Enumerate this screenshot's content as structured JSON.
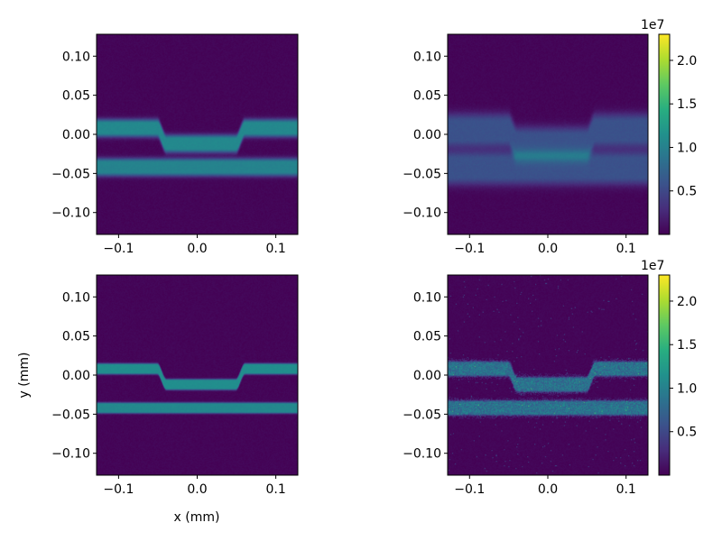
{
  "chart_data": [
    {
      "type": "heatmap",
      "panel": "top-left",
      "xlabel": "",
      "ylabel": "",
      "xlim": [
        -0.128,
        0.128
      ],
      "ylim": [
        -0.128,
        0.128
      ],
      "xticks": [
        -0.1,
        0.0,
        0.1
      ],
      "xtick_labels": [
        "−0.1",
        "0.0",
        "0.1"
      ],
      "yticks": [
        0.1,
        0.05,
        0.0,
        -0.05,
        -0.1
      ],
      "ytick_labels": [
        "0.10",
        "0.05",
        "0.00",
        "−0.05",
        "−0.10"
      ],
      "colormap": "viridis",
      "features": {
        "upper_guide": {
          "y_outer": 0.008,
          "y_center_dip": -0.012,
          "dip_x_range": [
            -0.045,
            0.055
          ],
          "half_width": 0.006,
          "intensity": 10500000.0
        },
        "lower_guide": {
          "y": -0.042,
          "half_width": 0.006,
          "intensity": 10000000.0
        },
        "blur": 0.004
      }
    },
    {
      "type": "heatmap",
      "panel": "top-right",
      "xlabel": "",
      "ylabel": "",
      "xlim": [
        -0.128,
        0.128
      ],
      "ylim": [
        -0.128,
        0.128
      ],
      "xticks": [
        -0.1,
        0.0,
        0.1
      ],
      "xtick_labels": [
        "−0.1",
        "0.0",
        "0.1"
      ],
      "yticks": [
        0.1,
        0.05,
        0.0,
        -0.05,
        -0.1
      ],
      "ytick_labels": [
        "0.10",
        "0.05",
        "0.00",
        "−0.05",
        "−0.10"
      ],
      "colormap": "viridis",
      "colorbar": {
        "range": [
          0.0,
          23000000.0
        ],
        "ticks": [
          0.5,
          1.0,
          1.5,
          2.0
        ],
        "tick_labels": [
          "0.5",
          "1.0",
          "1.5",
          "2.0"
        ],
        "offset_label": "1e7"
      },
      "features": {
        "upper_guide": {
          "y_outer": 0.005,
          "y_center_dip": -0.012,
          "dip_x_range": [
            -0.045,
            0.055
          ],
          "half_width": 0.011,
          "intensity": 5500000.0
        },
        "lower_guide": {
          "y": -0.043,
          "half_width": 0.011,
          "intensity": 5500000.0
        },
        "blur": 0.008
      }
    },
    {
      "type": "heatmap",
      "panel": "bottom-left",
      "xlabel": "x (mm)",
      "ylabel": "y (mm)",
      "xlim": [
        -0.128,
        0.128
      ],
      "ylim": [
        -0.128,
        0.128
      ],
      "xticks": [
        -0.1,
        0.0,
        0.1
      ],
      "xtick_labels": [
        "−0.1",
        "0.0",
        "0.1"
      ],
      "yticks": [
        0.1,
        0.05,
        0.0,
        -0.05,
        -0.1
      ],
      "ytick_labels": [
        "0.10",
        "0.05",
        "0.00",
        "−0.05",
        "−0.10"
      ],
      "colormap": "viridis",
      "features": {
        "upper_guide": {
          "y_outer": 0.008,
          "y_center_dip": -0.012,
          "dip_x_range": [
            -0.045,
            0.055
          ],
          "half_width": 0.005,
          "intensity": 11000000.0
        },
        "lower_guide": {
          "y": -0.042,
          "half_width": 0.005,
          "intensity": 10500000.0
        },
        "blur": 0.0015
      }
    },
    {
      "type": "heatmap",
      "panel": "bottom-right",
      "xlabel": "",
      "ylabel": "",
      "xlim": [
        -0.128,
        0.128
      ],
      "ylim": [
        -0.128,
        0.128
      ],
      "xticks": [
        -0.1,
        0.0,
        0.1
      ],
      "xtick_labels": [
        "−0.1",
        "0.0",
        "0.1"
      ],
      "yticks": [
        0.1,
        0.05,
        0.0,
        -0.05,
        -0.1
      ],
      "ytick_labels": [
        "0.10",
        "0.05",
        "0.00",
        "−0.05",
        "−0.10"
      ],
      "colormap": "viridis",
      "colorbar": {
        "range": [
          0.0,
          23000000.0
        ],
        "ticks": [
          0.5,
          1.0,
          1.5,
          2.0
        ],
        "tick_labels": [
          "0.5",
          "1.0",
          "1.5",
          "2.0"
        ],
        "offset_label": "1e7"
      },
      "features": {
        "upper_guide": {
          "y_outer": 0.008,
          "y_center_dip": -0.012,
          "dip_x_range": [
            -0.045,
            0.055
          ],
          "half_width": 0.007,
          "intensity": 8500000.0
        },
        "lower_guide": {
          "y": -0.042,
          "half_width": 0.007,
          "intensity": 8500000.0
        },
        "blur": 0.002,
        "artifacts": true
      }
    }
  ]
}
